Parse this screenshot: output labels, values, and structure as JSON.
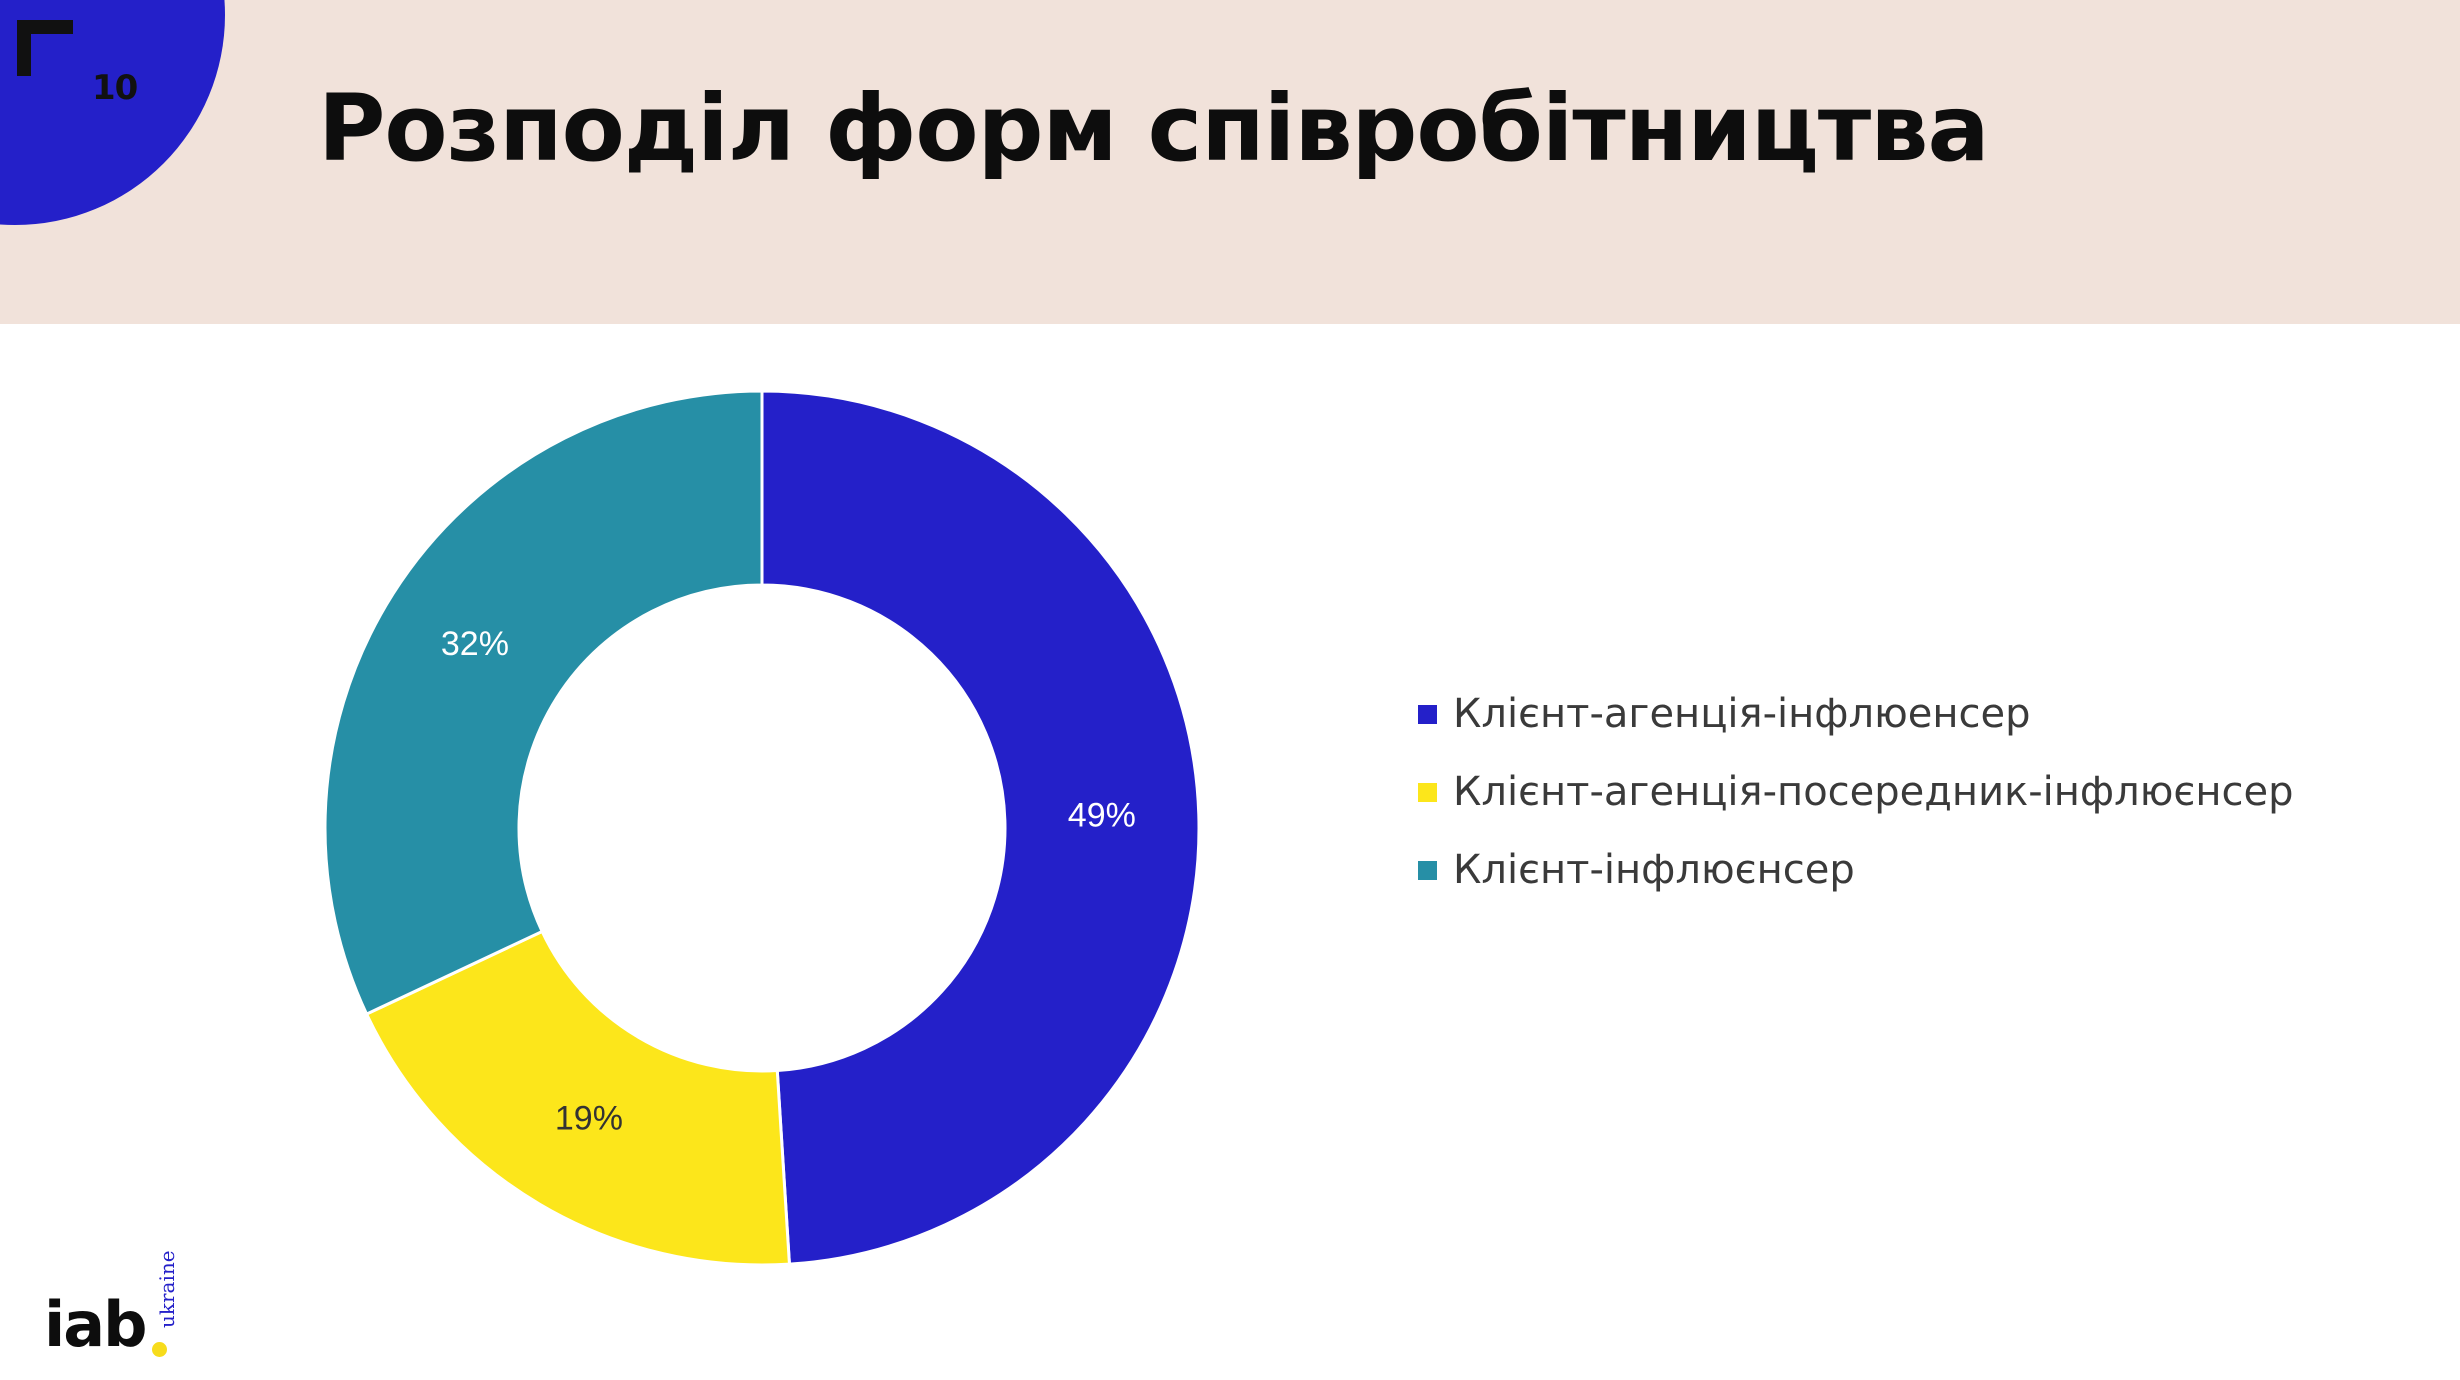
{
  "slide": {
    "number": "10",
    "title": "Розподіл форм співробітництва"
  },
  "brand": {
    "logo_text": "iab",
    "logo_subtext": "ukraine",
    "accent": "#2420c9",
    "header_bg": "#f1e2da",
    "logo_dot_color": "#f7dc1c"
  },
  "icons": {
    "corner": "corner-bracket-icon"
  },
  "chart_data": {
    "type": "pie",
    "variant": "donut",
    "title": "",
    "unit": "%",
    "legend_position": "right",
    "series": [
      {
        "name": "Клієнт-агенція-інфлюенсер",
        "value": 49,
        "label": "49%",
        "color": "#2420c9"
      },
      {
        "name": "Клієнт-агенція-посередник-інфлюєнсер",
        "value": 19,
        "label": "19%",
        "color": "#fce61b"
      },
      {
        "name": "Клієнт-інфлюєнсер",
        "value": 32,
        "label": "32%",
        "color": "#268fa6"
      }
    ]
  }
}
